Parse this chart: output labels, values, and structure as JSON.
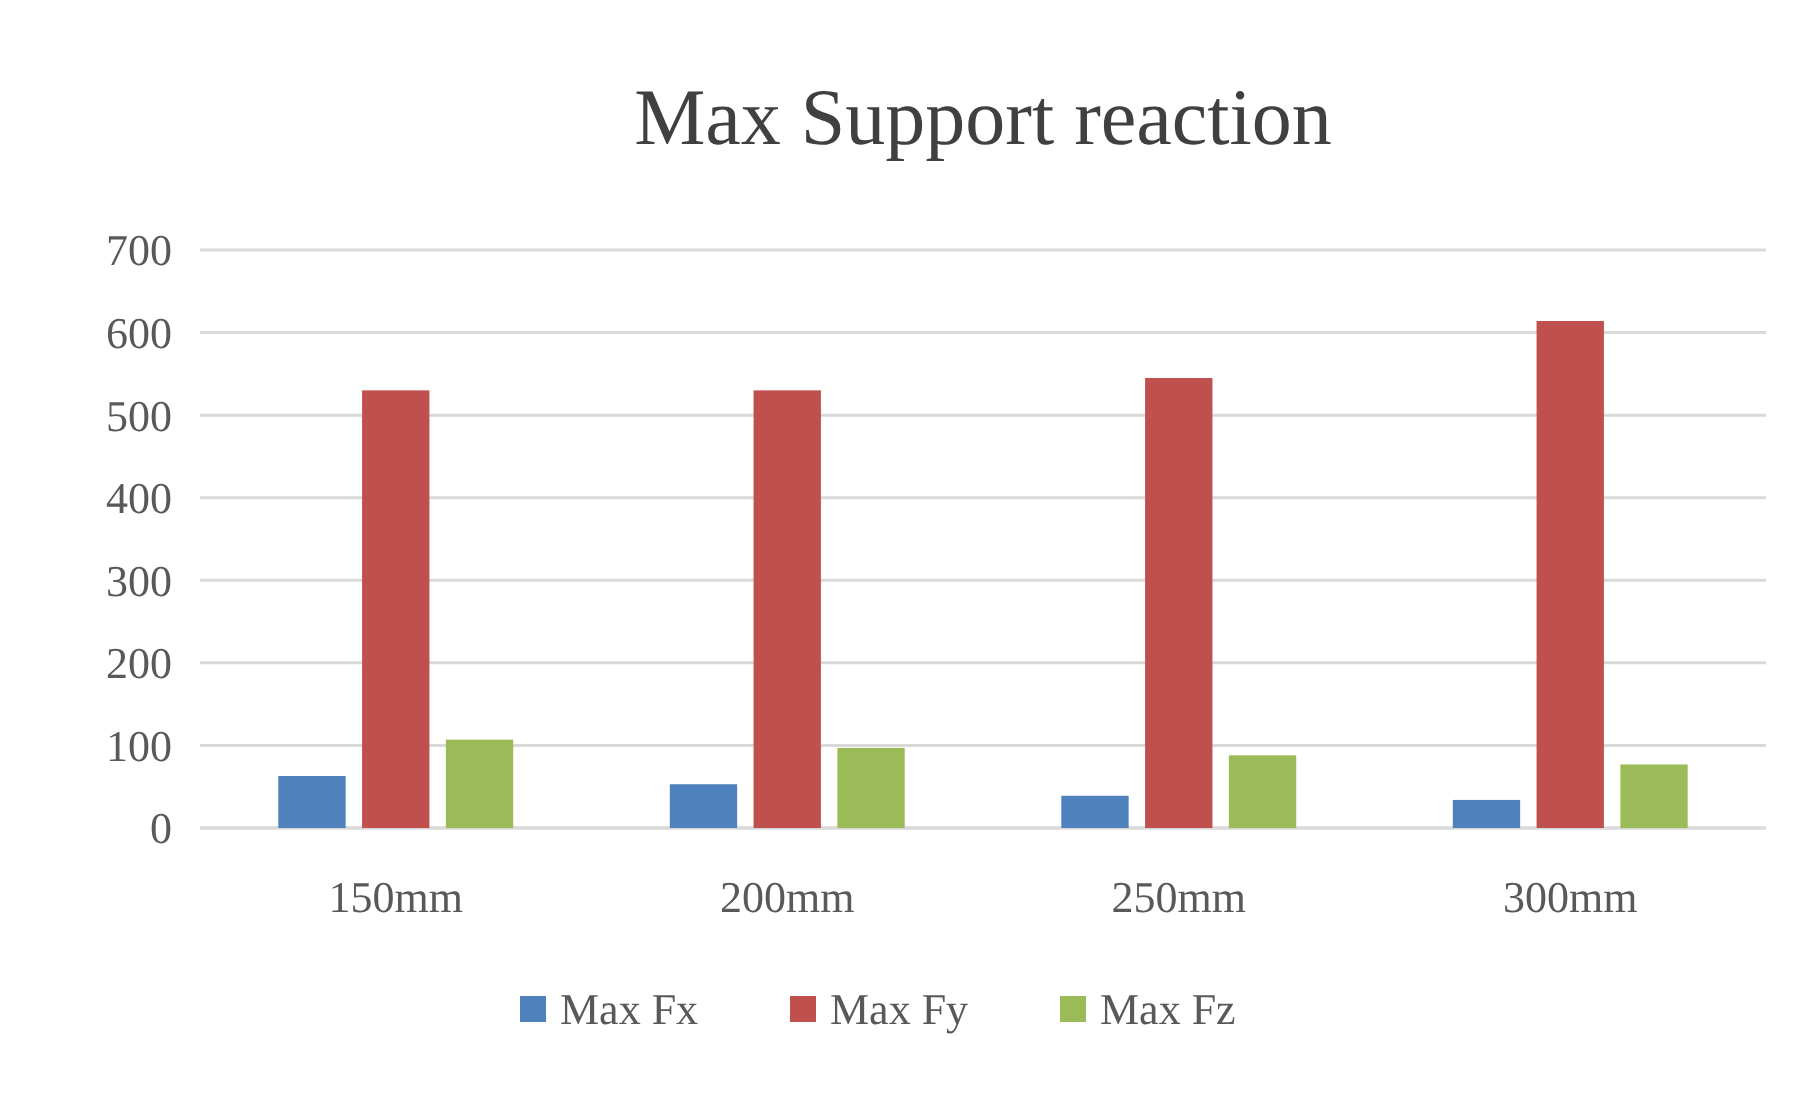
{
  "chart_data": {
    "type": "bar",
    "title": "Max Support reaction",
    "categories": [
      "150mm",
      "200mm",
      "250mm",
      "300mm"
    ],
    "series": [
      {
        "name": "Max Fx",
        "color": "#4f81bd",
        "values": [
          63,
          53,
          39,
          34
        ]
      },
      {
        "name": "Max Fy",
        "color": "#c0504d",
        "values": [
          530,
          530,
          545,
          614
        ]
      },
      {
        "name": "Max Fz",
        "color": "#9bbb59",
        "values": [
          107,
          97,
          88,
          77
        ]
      }
    ],
    "ylim": [
      0,
      700
    ],
    "yticks": [
      0,
      100,
      200,
      300,
      400,
      500,
      600,
      700
    ],
    "grid": "y",
    "legend": "bottom"
  }
}
